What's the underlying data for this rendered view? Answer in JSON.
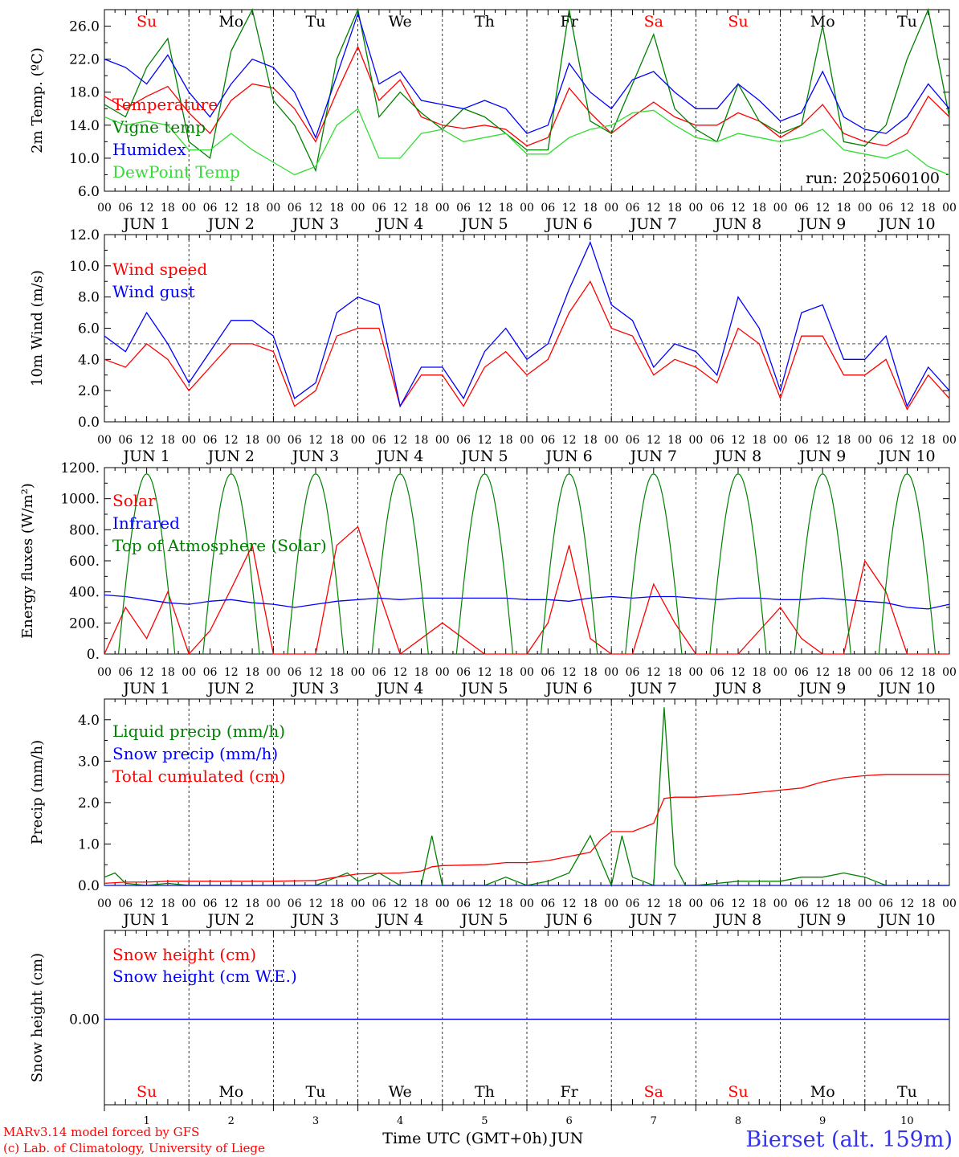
{
  "colors": {
    "red": "#ff0000",
    "green": "#008000",
    "blue": "#0000ff",
    "lightgreen": "#33dd33",
    "black": "#000000",
    "footerblue": "#3333ee"
  },
  "x_axis": {
    "hour_ticks": [
      "00",
      "06",
      "12",
      "18"
    ],
    "final_tick": "00",
    "date_labels": [
      "JUN  1",
      "JUN  2",
      "JUN  3",
      "JUN  4",
      "JUN  5",
      "JUN  6",
      "JUN  7",
      "JUN  8",
      "JUN  9",
      "JUN 10"
    ],
    "weekdays": [
      "Su",
      "Mo",
      "Tu",
      "We",
      "Th",
      "Fr",
      "Sa",
      "Su",
      "Mo",
      "Tu"
    ],
    "weekday_colors": [
      "red",
      "black",
      "black",
      "black",
      "black",
      "black",
      "red",
      "red",
      "black",
      "black"
    ],
    "day_numbers": [
      "1",
      "2",
      "3",
      "4",
      "5",
      "6",
      "7",
      "8",
      "9",
      "10"
    ],
    "bottom_label": "Time UTC (GMT+0h)",
    "bottom_month": "JUN"
  },
  "footer": {
    "line1": "MARv3.14 model forced by GFS",
    "line2": "(c) Lab. of Climatology, University of Liege",
    "station": "Bierset (alt. 159m)"
  },
  "chart_data": [
    {
      "type": "line",
      "ylabel": "2m Temp. (ºC)",
      "ylim": [
        6.0,
        28.0
      ],
      "yticks": [
        "6.0",
        "10.0",
        "14.0",
        "18.0",
        "22.0",
        "26.0"
      ],
      "run_label": "run: 2025060100",
      "x_unit": "hours since JUN 1 00 UTC",
      "series": [
        {
          "name": "Temperature",
          "color": "red",
          "x": [
            0,
            6,
            12,
            18,
            24,
            30,
            36,
            42,
            48,
            54,
            60,
            66,
            72,
            78,
            84,
            90,
            96,
            102,
            108,
            114,
            120,
            126,
            132,
            138,
            144,
            150,
            156,
            162,
            168,
            174,
            180,
            186,
            192,
            198,
            204,
            210,
            216,
            222,
            228,
            234,
            240
          ],
          "values": [
            17.5,
            16.0,
            17.5,
            18.7,
            15.5,
            13.0,
            17.0,
            19.0,
            18.5,
            16.0,
            12.0,
            18.0,
            23.5,
            17.0,
            19.5,
            15.0,
            14.0,
            13.6,
            14.0,
            13.5,
            11.5,
            12.5,
            18.5,
            15.5,
            13.0,
            15.0,
            16.8,
            15.0,
            14.0,
            14.0,
            15.5,
            14.5,
            12.5,
            14.0,
            16.5,
            13.0,
            12.0,
            11.5,
            13.0,
            17.5,
            15.0
          ]
        },
        {
          "name": "Vigne temp",
          "color": "green",
          "x": [
            0,
            6,
            12,
            18,
            24,
            30,
            36,
            42,
            48,
            54,
            60,
            66,
            72,
            78,
            84,
            90,
            96,
            102,
            108,
            114,
            120,
            126,
            132,
            138,
            144,
            150,
            156,
            162,
            168,
            174,
            180,
            186,
            192,
            198,
            204,
            210,
            216,
            222,
            228,
            234,
            240
          ],
          "values": [
            16.5,
            15.0,
            21.0,
            24.5,
            12.0,
            10.0,
            23.0,
            28.0,
            17.0,
            14.0,
            8.5,
            22.0,
            28.0,
            15.0,
            18.0,
            15.5,
            13.5,
            16.0,
            15.0,
            13.0,
            11.0,
            11.0,
            28.0,
            14.5,
            13.0,
            19.0,
            25.0,
            16.0,
            13.5,
            12.0,
            19.0,
            14.5,
            13.0,
            14.0,
            26.0,
            12.0,
            11.5,
            14.0,
            22.0,
            28.0,
            15.0
          ]
        },
        {
          "name": "Humidex",
          "color": "blue",
          "x": [
            0,
            6,
            12,
            18,
            24,
            30,
            36,
            42,
            48,
            54,
            60,
            66,
            72,
            78,
            84,
            90,
            96,
            102,
            108,
            114,
            120,
            126,
            132,
            138,
            144,
            150,
            156,
            162,
            168,
            174,
            180,
            186,
            192,
            198,
            204,
            210,
            216,
            222,
            228,
            234,
            240
          ],
          "values": [
            22.0,
            21.0,
            19.0,
            22.5,
            18.0,
            15.0,
            19.0,
            22.0,
            21.0,
            18.0,
            12.5,
            20.0,
            27.5,
            19.0,
            20.5,
            17.0,
            16.5,
            16.0,
            17.0,
            16.0,
            13.0,
            14.0,
            21.5,
            18.0,
            16.0,
            19.5,
            20.5,
            18.0,
            16.0,
            16.0,
            19.0,
            17.0,
            14.5,
            15.5,
            20.5,
            15.0,
            13.5,
            13.0,
            15.0,
            19.0,
            16.0
          ]
        },
        {
          "name": "DewPoint Temp",
          "color": "lightgreen",
          "x": [
            0,
            6,
            12,
            18,
            24,
            30,
            36,
            42,
            48,
            54,
            60,
            66,
            72,
            78,
            84,
            90,
            96,
            102,
            108,
            114,
            120,
            126,
            132,
            138,
            144,
            150,
            156,
            162,
            168,
            174,
            180,
            186,
            192,
            198,
            204,
            210,
            216,
            222,
            228,
            234,
            240
          ],
          "values": [
            15.0,
            14.0,
            14.5,
            14.0,
            11.0,
            11.0,
            13.0,
            11.0,
            9.5,
            8.0,
            9.0,
            14.0,
            16.0,
            10.0,
            10.0,
            13.0,
            13.5,
            12.0,
            12.5,
            13.0,
            10.5,
            10.5,
            12.5,
            13.5,
            14.0,
            15.5,
            15.8,
            14.0,
            12.5,
            12.0,
            13.0,
            12.5,
            12.0,
            12.5,
            13.5,
            11.0,
            10.5,
            10.0,
            11.0,
            9.0,
            8.0
          ]
        }
      ]
    },
    {
      "type": "line",
      "ylabel": "10m Wind (m/s)",
      "ylim": [
        0.0,
        12.0
      ],
      "yticks": [
        "0.0",
        "2.0",
        "4.0",
        "6.0",
        "8.0",
        "10.0",
        "12.0"
      ],
      "reference_line": 5.0,
      "x_unit": "hours since JUN 1 00 UTC",
      "series": [
        {
          "name": "Wind speed",
          "color": "red",
          "x": [
            0,
            6,
            12,
            18,
            24,
            30,
            36,
            42,
            48,
            54,
            60,
            66,
            72,
            78,
            84,
            90,
            96,
            102,
            108,
            114,
            120,
            126,
            132,
            138,
            144,
            150,
            156,
            162,
            168,
            174,
            180,
            186,
            192,
            198,
            204,
            210,
            216,
            222,
            228,
            234,
            240
          ],
          "values": [
            4.0,
            3.5,
            5.0,
            4.0,
            2.0,
            3.5,
            5.0,
            5.0,
            4.5,
            1.0,
            2.0,
            5.5,
            6.0,
            6.0,
            1.0,
            3.0,
            3.0,
            1.0,
            3.5,
            4.5,
            3.0,
            4.0,
            7.0,
            9.0,
            6.0,
            5.5,
            3.0,
            4.0,
            3.5,
            2.5,
            6.0,
            5.0,
            1.5,
            5.5,
            5.5,
            3.0,
            3.0,
            4.0,
            0.8,
            3.0,
            1.5
          ]
        },
        {
          "name": "Wind gust",
          "color": "blue",
          "x": [
            0,
            6,
            12,
            18,
            24,
            30,
            36,
            42,
            48,
            54,
            60,
            66,
            72,
            78,
            84,
            90,
            96,
            102,
            108,
            114,
            120,
            126,
            132,
            138,
            144,
            150,
            156,
            162,
            168,
            174,
            180,
            186,
            192,
            198,
            204,
            210,
            216,
            222,
            228,
            234,
            240
          ],
          "values": [
            5.5,
            4.5,
            7.0,
            5.0,
            2.5,
            4.5,
            6.5,
            6.5,
            5.5,
            1.5,
            2.5,
            7.0,
            8.0,
            7.5,
            1.0,
            3.5,
            3.5,
            1.5,
            4.5,
            6.0,
            4.0,
            5.0,
            8.5,
            11.5,
            7.5,
            6.5,
            3.5,
            5.0,
            4.5,
            3.0,
            8.0,
            6.0,
            2.0,
            7.0,
            7.5,
            4.0,
            4.0,
            5.5,
            1.0,
            3.5,
            2.0
          ]
        }
      ]
    },
    {
      "type": "line",
      "ylabel": "Energy fluxes (W/m²)",
      "ylim": [
        0,
        1200
      ],
      "yticks": [
        "0.",
        "200.",
        "400.",
        "600.",
        "800.",
        "1000.",
        "1200."
      ],
      "x_unit": "hours since JUN 1 00 UTC",
      "series": [
        {
          "name": "Solar",
          "color": "red",
          "x": [
            0,
            6,
            12,
            18,
            24,
            30,
            36,
            42,
            48,
            54,
            60,
            66,
            72,
            78,
            84,
            90,
            96,
            102,
            108,
            114,
            120,
            126,
            132,
            138,
            144,
            150,
            156,
            162,
            168,
            174,
            180,
            186,
            192,
            198,
            204,
            210,
            216,
            222,
            228,
            234,
            240
          ],
          "values": [
            0,
            300,
            100,
            400,
            0,
            150,
            420,
            700,
            0,
            0,
            0,
            700,
            820,
            400,
            0,
            100,
            200,
            100,
            0,
            0,
            0,
            200,
            700,
            100,
            0,
            0,
            450,
            200,
            0,
            0,
            0,
            150,
            300,
            100,
            0,
            0,
            600,
            400,
            0,
            0,
            0
          ]
        },
        {
          "name": "Infrared",
          "color": "blue",
          "x": [
            0,
            6,
            12,
            18,
            24,
            30,
            36,
            42,
            48,
            54,
            60,
            66,
            72,
            78,
            84,
            90,
            96,
            102,
            108,
            114,
            120,
            126,
            132,
            138,
            144,
            150,
            156,
            162,
            168,
            174,
            180,
            186,
            192,
            198,
            204,
            210,
            216,
            222,
            228,
            234,
            240
          ],
          "values": [
            380,
            370,
            350,
            330,
            320,
            340,
            350,
            330,
            320,
            300,
            320,
            340,
            350,
            360,
            350,
            360,
            360,
            360,
            360,
            360,
            350,
            350,
            340,
            360,
            370,
            360,
            370,
            370,
            360,
            350,
            360,
            360,
            350,
            350,
            360,
            350,
            340,
            330,
            300,
            290,
            320
          ]
        },
        {
          "name": "Top of Atmosphere (Solar)",
          "color": "green",
          "peak": 1160
        }
      ]
    },
    {
      "type": "line",
      "ylabel": "Precip (mm/h)",
      "ylim": [
        0.0,
        4.5
      ],
      "yticks": [
        "0.0",
        "1.0",
        "2.0",
        "3.0",
        "4.0"
      ],
      "x_unit": "hours since JUN 1 00 UTC",
      "series": [
        {
          "name": "Liquid precip (mm/h)",
          "color": "green",
          "x": [
            0,
            3,
            6,
            12,
            18,
            24,
            36,
            48,
            60,
            66,
            69,
            72,
            78,
            84,
            90,
            93,
            96,
            102,
            108,
            114,
            120,
            126,
            132,
            138,
            141,
            144,
            147,
            150,
            156,
            159,
            162,
            165,
            168,
            180,
            192,
            198,
            204,
            210,
            216,
            222,
            228,
            234,
            240
          ],
          "values": [
            0.2,
            0.3,
            0.05,
            0.0,
            0.05,
            0.0,
            0.0,
            0.0,
            0.0,
            0.2,
            0.3,
            0.1,
            0.3,
            0.0,
            0.0,
            1.2,
            0.0,
            0.0,
            0.0,
            0.2,
            0.0,
            0.1,
            0.3,
            1.2,
            0.6,
            0.0,
            1.2,
            0.2,
            0.0,
            4.3,
            0.5,
            0.0,
            0.0,
            0.1,
            0.1,
            0.2,
            0.2,
            0.3,
            0.2,
            0.0,
            0.0,
            0.0,
            0.0
          ]
        },
        {
          "name": "Snow precip (mm/h)",
          "color": "blue",
          "x": [
            0,
            240
          ],
          "values": [
            0.0,
            0.0
          ]
        },
        {
          "name": "Total cumulated (cm)",
          "color": "red",
          "x": [
            0,
            6,
            12,
            18,
            24,
            36,
            48,
            60,
            66,
            72,
            84,
            90,
            93,
            96,
            108,
            114,
            120,
            126,
            132,
            138,
            141,
            144,
            150,
            156,
            159,
            162,
            168,
            180,
            192,
            198,
            204,
            210,
            216,
            222,
            228,
            234,
            240
          ],
          "values": [
            0.05,
            0.08,
            0.08,
            0.1,
            0.1,
            0.1,
            0.1,
            0.12,
            0.2,
            0.28,
            0.3,
            0.35,
            0.45,
            0.48,
            0.5,
            0.55,
            0.55,
            0.6,
            0.7,
            0.8,
            1.1,
            1.3,
            1.3,
            1.5,
            2.1,
            2.13,
            2.13,
            2.2,
            2.3,
            2.35,
            2.5,
            2.6,
            2.65,
            2.68,
            2.68,
            2.68,
            2.68
          ]
        }
      ]
    },
    {
      "type": "line",
      "ylabel": "Snow height (cm)",
      "yticks": [
        "0.00"
      ],
      "x_unit": "hours since JUN 1 00 UTC",
      "series": [
        {
          "name": "Snow height (cm)",
          "color": "red",
          "x": [
            0,
            240
          ],
          "values": [
            0.0,
            0.0
          ]
        },
        {
          "name": "Snow height (cm W.E.)",
          "color": "blue",
          "x": [
            0,
            240
          ],
          "values": [
            0.0,
            0.0
          ]
        }
      ]
    }
  ]
}
